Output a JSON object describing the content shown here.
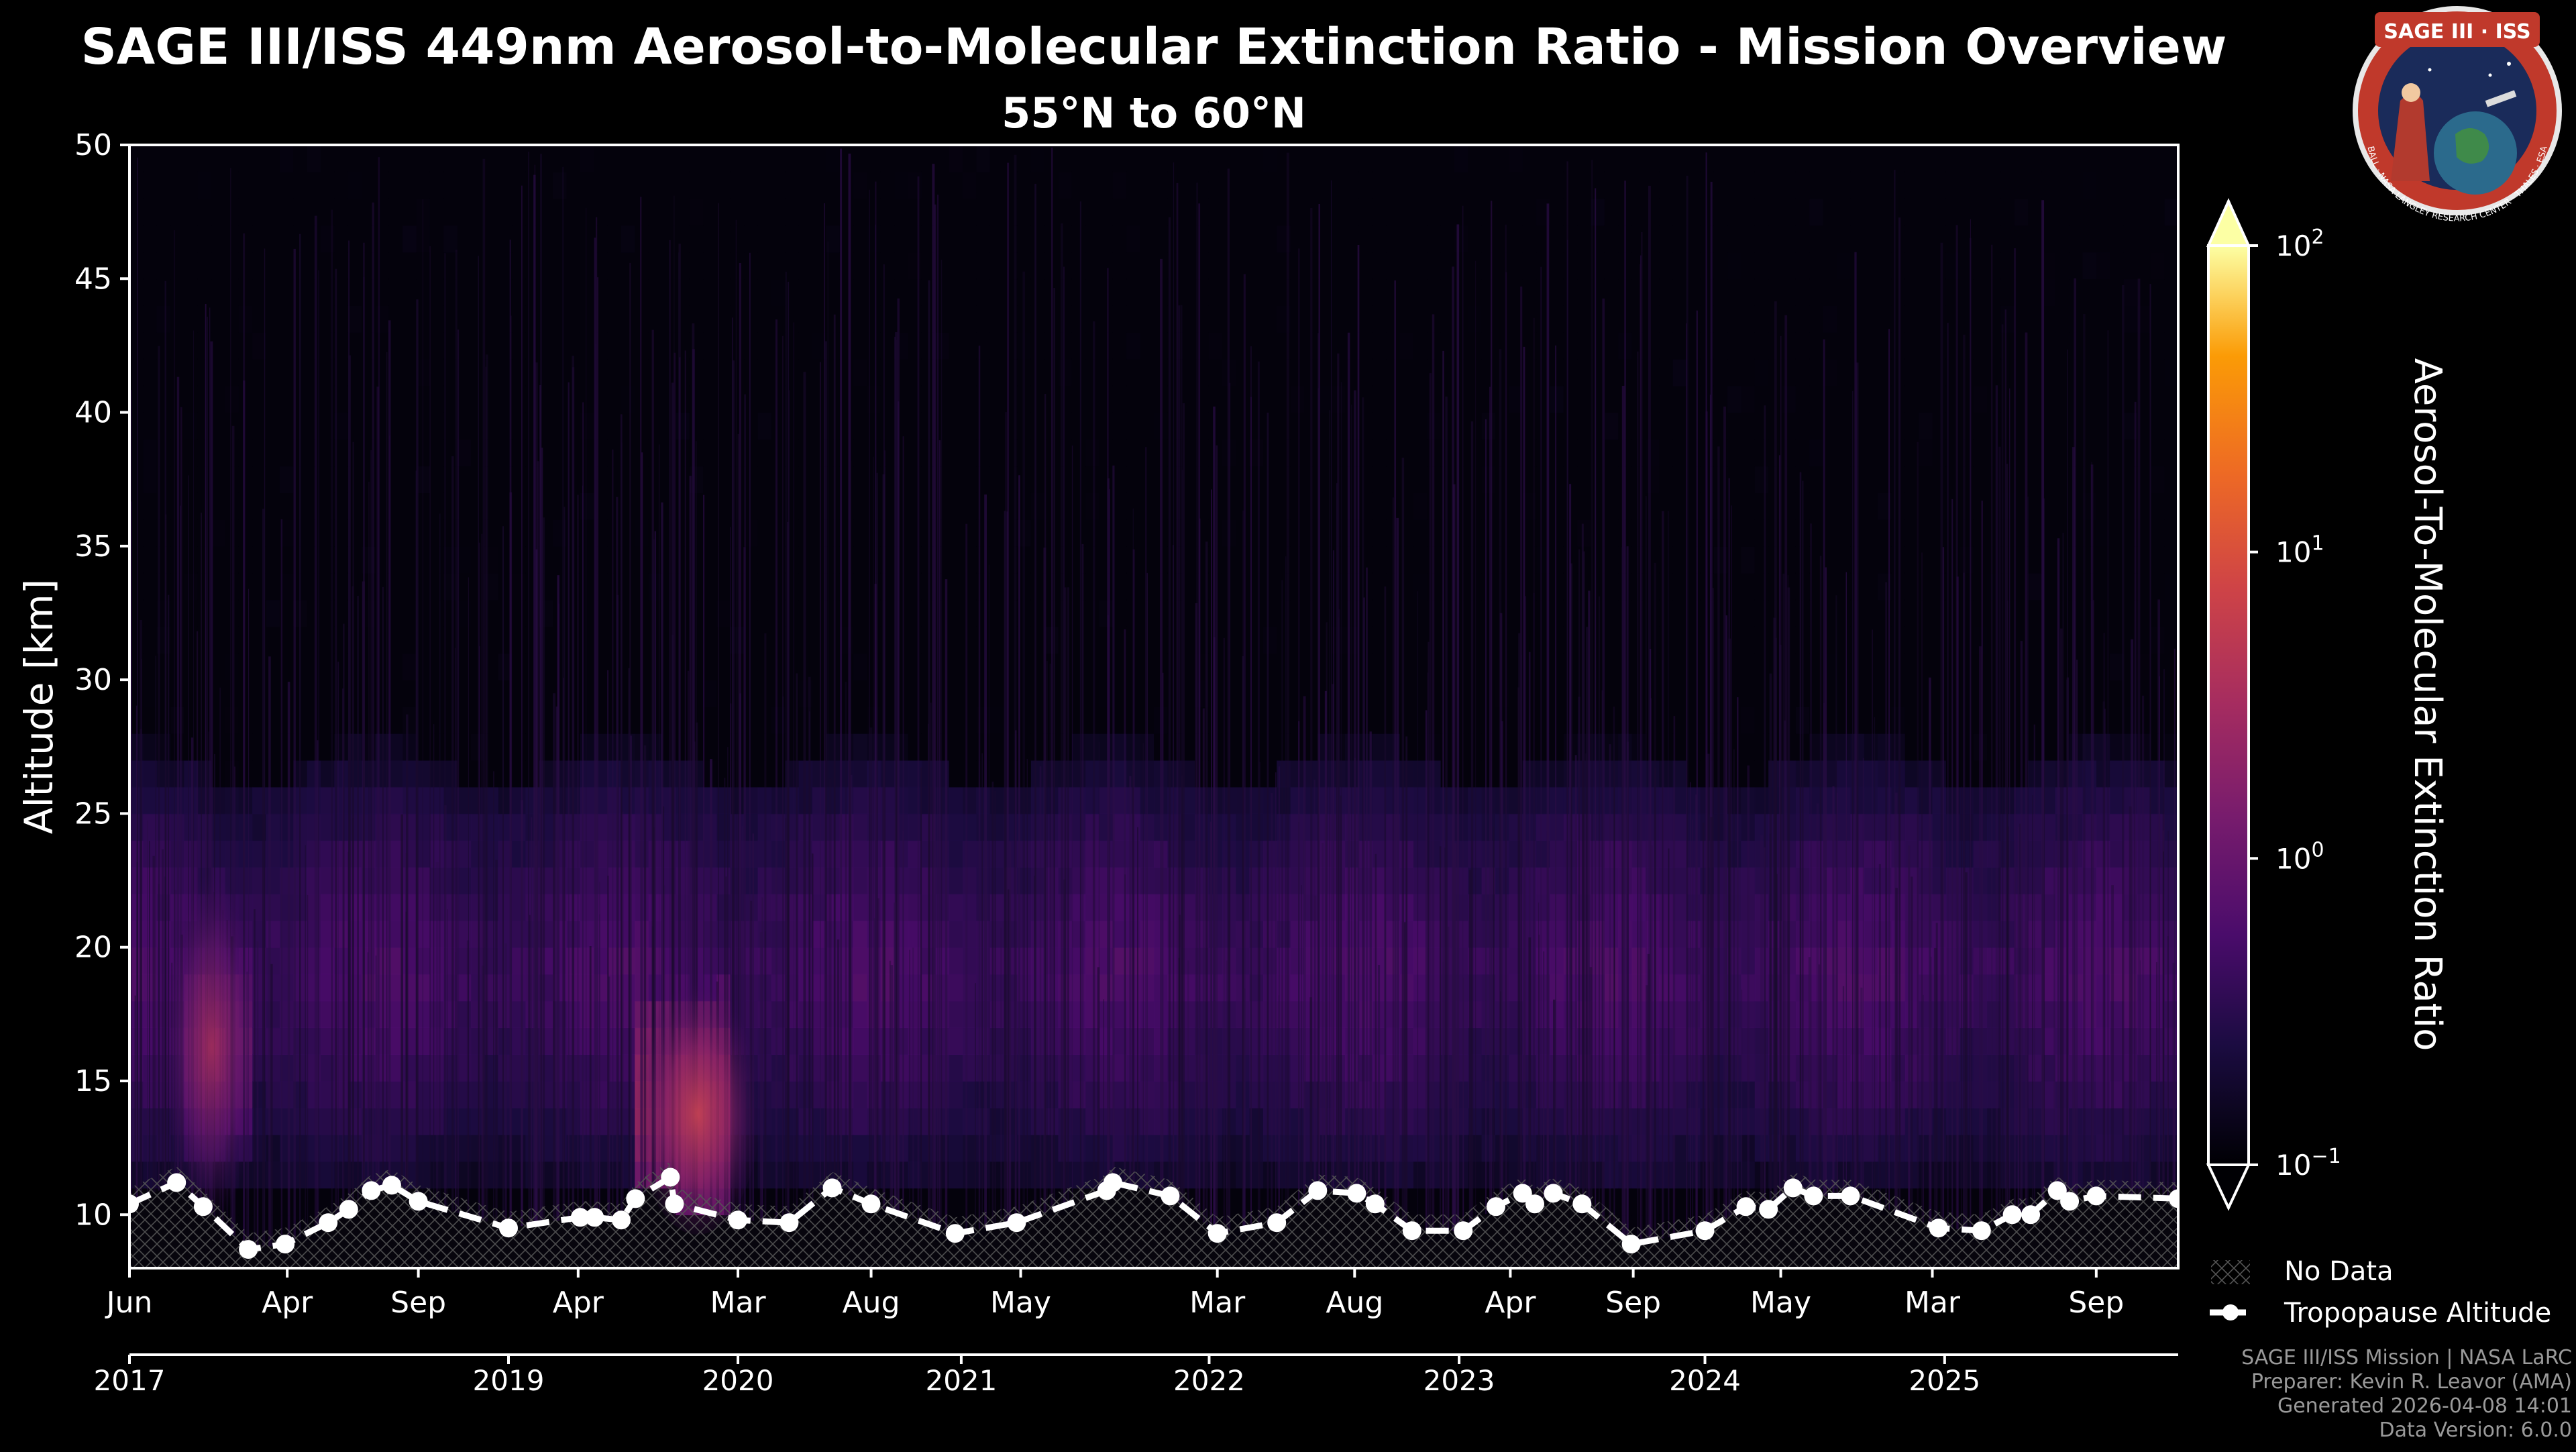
{
  "chart_data": {
    "type": "heatmap",
    "title": "SAGE III/ISS 449nm Aerosol-to-Molecular Extinction Ratio - Mission Overview",
    "subtitle": "55°N to 60°N",
    "ylabel": "Altitude [km]",
    "ylim": [
      8,
      50
    ],
    "yticks": [
      10,
      15,
      20,
      25,
      30,
      35,
      40,
      45,
      50
    ],
    "month_tick_labels": [
      "Jun",
      "Apr",
      "Sep",
      "Apr",
      "Mar",
      "Aug",
      "May",
      "Mar",
      "Aug",
      "Apr",
      "Sep",
      "May",
      "Mar",
      "Sep"
    ],
    "month_tick_positions": [
      0,
      0.077,
      0.141,
      0.219,
      0.297,
      0.362,
      0.435,
      0.531,
      0.598,
      0.674,
      0.734,
      0.806,
      0.88,
      0.96
    ],
    "year_tick_labels": [
      "2017",
      "2019",
      "2020",
      "2021",
      "2022",
      "2023",
      "2024",
      "2025"
    ],
    "year_tick_positions": [
      0,
      0.185,
      0.297,
      0.406,
      0.527,
      0.649,
      0.769,
      0.886
    ],
    "colorbar": {
      "label": "Aerosol-To-Molecular Extinction Ratio",
      "scale": "log",
      "range": [
        0.1,
        100
      ],
      "colormap": "inferno",
      "tick_base": "10",
      "tick_exponents": [
        "2",
        "1",
        "0",
        "−1"
      ],
      "tick_values": [
        100,
        10,
        1,
        0.1
      ]
    },
    "legend": [
      {
        "label": "No Data",
        "style": "crosshatch"
      },
      {
        "label": "Tropopause Altitude",
        "style": "white dashed line with circle markers"
      }
    ],
    "tropopause_altitude_km": {
      "x": [
        0,
        0.023,
        0.036,
        0.058,
        0.076,
        0.097,
        0.107,
        0.118,
        0.128,
        0.141,
        0.185,
        0.22,
        0.227,
        0.24,
        0.247,
        0.264,
        0.266,
        0.297,
        0.322,
        0.343,
        0.362,
        0.403,
        0.433,
        0.477,
        0.48,
        0.508,
        0.531,
        0.56,
        0.58,
        0.599,
        0.608,
        0.626,
        0.651,
        0.667,
        0.68,
        0.686,
        0.695,
        0.709,
        0.733,
        0.769,
        0.789,
        0.8,
        0.812,
        0.822,
        0.84,
        0.883,
        0.904,
        0.919,
        0.928,
        0.941,
        0.947,
        0.96,
        1.0
      ],
      "values": [
        10.4,
        11.2,
        10.3,
        8.7,
        8.9,
        9.7,
        10.2,
        10.9,
        11.1,
        10.5,
        9.5,
        9.9,
        9.9,
        9.8,
        10.6,
        11.4,
        10.4,
        9.8,
        9.7,
        11.0,
        10.4,
        9.3,
        9.7,
        10.9,
        11.2,
        10.7,
        9.3,
        9.7,
        10.9,
        10.8,
        10.4,
        9.4,
        9.4,
        10.3,
        10.8,
        10.4,
        10.8,
        10.4,
        8.9,
        9.4,
        10.3,
        10.2,
        11.0,
        10.7,
        10.7,
        9.5,
        9.4,
        10.0,
        10.0,
        10.9,
        10.5,
        10.7,
        10.6
      ]
    },
    "aerosol_layer_summary": {
      "background_ratio": 0.1,
      "stratospheric_layer_altitude_km": [
        12,
        26
      ],
      "enhancement_events": [
        {
          "x_range": [
            0.024,
            0.058
          ],
          "altitude_km": [
            12,
            21
          ],
          "peak_ratio": 5
        },
        {
          "x_range": [
            0.248,
            0.295
          ],
          "altitude_km": [
            9,
            19
          ],
          "peak_ratio": 10
        }
      ]
    }
  },
  "logo": {
    "text_top": "SAGE III · ISS",
    "ring_text": "BALL · NASA LANGLEY RESEARCH CENTER · THALES · ESA"
  },
  "footer": {
    "line1": "SAGE III/ISS Mission | NASA LaRC",
    "line2": "Preparer: Kevin R. Leavor (AMA)",
    "line3": "Generated 2026-04-08 14:01",
    "line4": "Data Version: 6.0.0"
  },
  "colors": {
    "background": "#000000",
    "axes": "#ffffff",
    "tropopause": "#ffffff",
    "credits": "#9a9a9a",
    "logo_ring": "#c0392b",
    "logo_field": "#1a2b5a"
  }
}
